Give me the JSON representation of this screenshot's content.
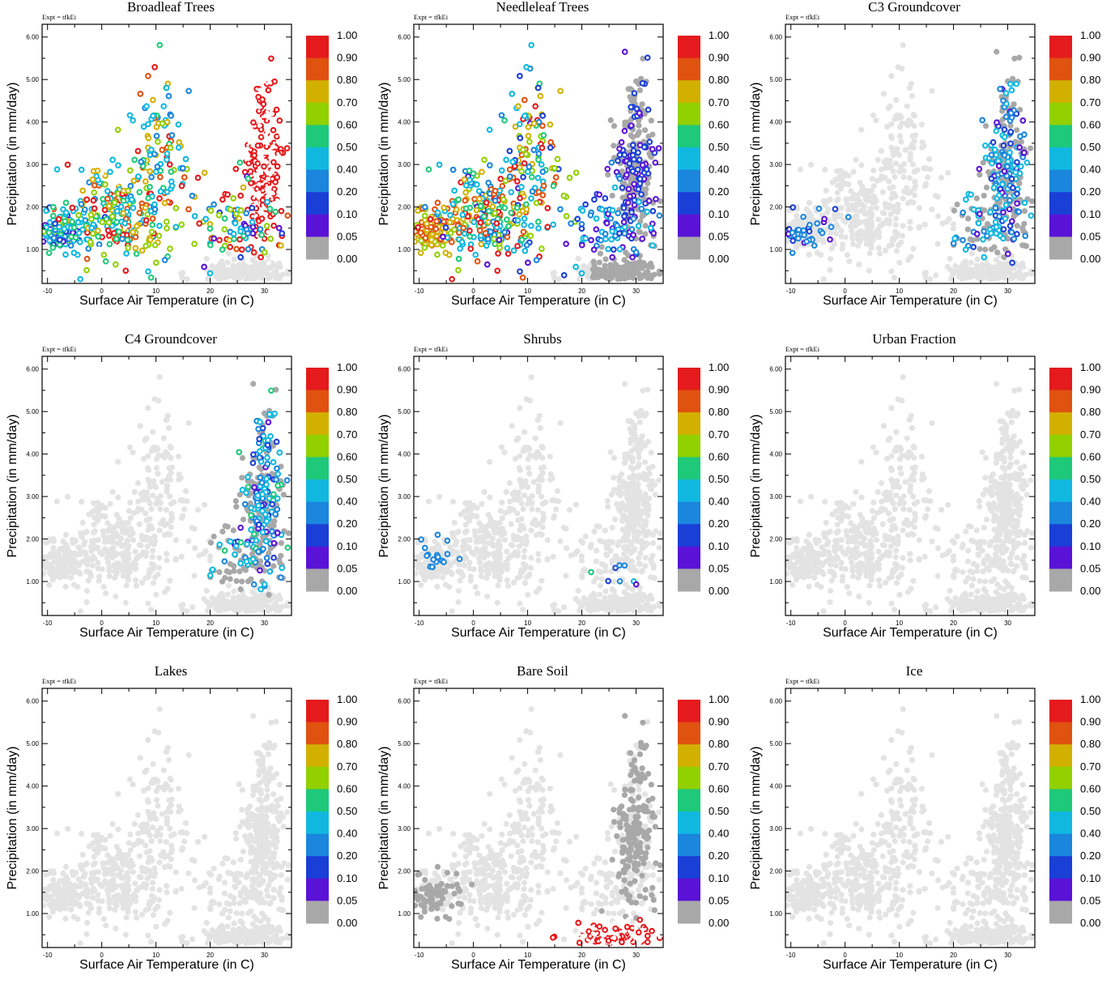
{
  "figure": {
    "experiment_label": "Expt = tfkEi",
    "xlabel": "Surface Air Temperature (in C)",
    "ylabel": "Precipitation (in mm/day)",
    "x_ticks": [
      "-10",
      "0",
      "10",
      "20",
      "30"
    ],
    "y_ticks": [
      "1.00",
      "2.00",
      "3.00",
      "4.00",
      "5.00",
      "6.00"
    ],
    "colorbar": {
      "labels": [
        "1.00",
        "0.90",
        "0.80",
        "0.70",
        "0.60",
        "0.50",
        "0.40",
        "0.20",
        "0.10",
        "0.05",
        "0.00"
      ],
      "colors": [
        "#e41a1c",
        "#e0520f",
        "#d2b000",
        "#92d000",
        "#1ec97a",
        "#10b8e0",
        "#1a86dd",
        "#1a3fd6",
        "#5a12d6",
        "#a8a8a8"
      ]
    },
    "background_point_color": "#e3e3e3"
  },
  "chart_data": [
    {
      "type": "scatter",
      "title": "Broadleaf Trees",
      "xlim": [
        -11,
        35
      ],
      "ylim": [
        0.2,
        6.3
      ],
      "color_by": "fraction",
      "highlight": "Broadleaf Trees"
    },
    {
      "type": "scatter",
      "title": "Needleleaf Trees",
      "xlim": [
        -11,
        35
      ],
      "ylim": [
        0.2,
        6.3
      ],
      "color_by": "fraction",
      "highlight": "Needleleaf Trees"
    },
    {
      "type": "scatter",
      "title": "C3 Groundcover",
      "xlim": [
        -11,
        35
      ],
      "ylim": [
        0.2,
        6.3
      ],
      "color_by": "fraction",
      "highlight": "C3 Groundcover"
    },
    {
      "type": "scatter",
      "title": "C4 Groundcover",
      "xlim": [
        -11,
        35
      ],
      "ylim": [
        0.2,
        6.3
      ],
      "color_by": "fraction",
      "highlight": "C4 Groundcover"
    },
    {
      "type": "scatter",
      "title": "Shrubs",
      "xlim": [
        -11,
        35
      ],
      "ylim": [
        0.2,
        6.3
      ],
      "color_by": "fraction",
      "highlight": "Shrubs"
    },
    {
      "type": "scatter",
      "title": "Urban Fraction",
      "xlim": [
        -11,
        35
      ],
      "ylim": [
        0.2,
        6.3
      ],
      "color_by": "fraction",
      "highlight": "Urban Fraction"
    },
    {
      "type": "scatter",
      "title": "Lakes",
      "xlim": [
        -11,
        35
      ],
      "ylim": [
        0.2,
        6.3
      ],
      "color_by": "fraction",
      "highlight": "Lakes"
    },
    {
      "type": "scatter",
      "title": "Bare Soil",
      "xlim": [
        -11,
        35
      ],
      "ylim": [
        0.2,
        6.3
      ],
      "color_by": "fraction",
      "highlight": "Bare Soil"
    },
    {
      "type": "scatter",
      "title": "Ice",
      "xlim": [
        -11,
        35
      ],
      "ylim": [
        0.2,
        6.3
      ],
      "color_by": "fraction",
      "highlight": "Ice"
    }
  ]
}
